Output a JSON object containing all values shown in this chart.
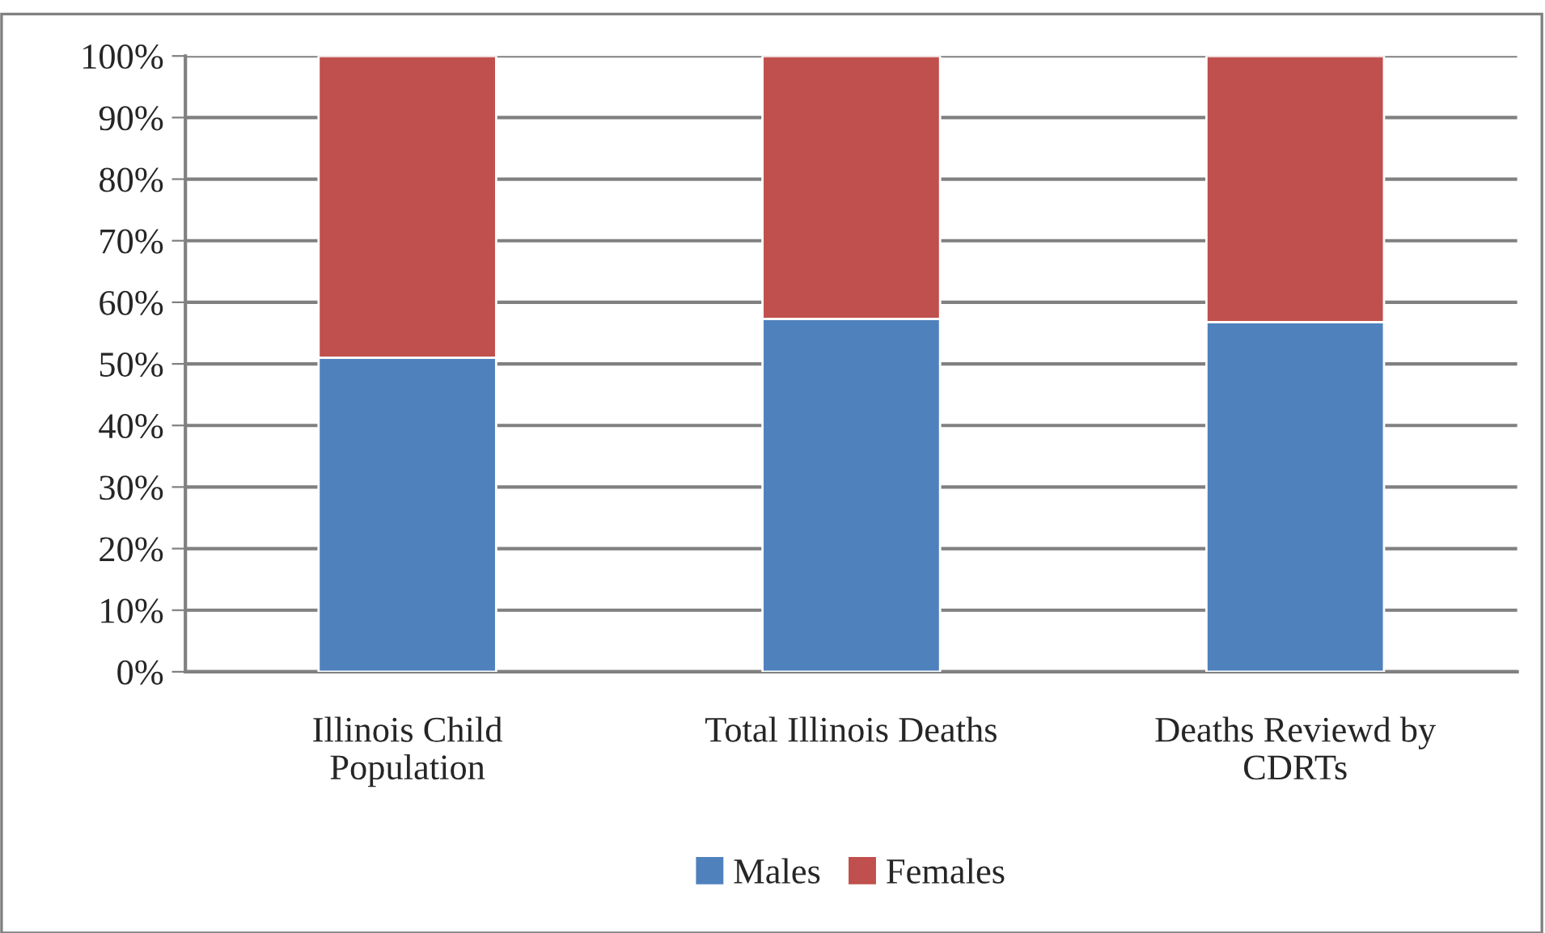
{
  "chart_data": {
    "type": "bar",
    "stacked": true,
    "categories": [
      "Illinois Child\nPopulation",
      "Total Illinois Deaths",
      "Deaths Reviewd by\nCDRTs"
    ],
    "series": [
      {
        "name": "Males",
        "color": "#4f81bd",
        "values": [
          51.0,
          57.3,
          56.8
        ]
      },
      {
        "name": "Females",
        "color": "#c0504d",
        "values": [
          49.0,
          42.7,
          43.2
        ]
      }
    ],
    "ylim": [
      0,
      100
    ],
    "yticks": [
      {
        "value": 0,
        "label": "0%"
      },
      {
        "value": 10,
        "label": "10%"
      },
      {
        "value": 20,
        "label": "20%"
      },
      {
        "value": 30,
        "label": "30%"
      },
      {
        "value": 40,
        "label": "40%"
      },
      {
        "value": 50,
        "label": "50%"
      },
      {
        "value": 60,
        "label": "60%"
      },
      {
        "value": 70,
        "label": "70%"
      },
      {
        "value": 80,
        "label": "80%"
      },
      {
        "value": 90,
        "label": "90%"
      },
      {
        "value": 100,
        "label": "100%"
      }
    ],
    "grid": "y",
    "legend": "bottom"
  }
}
